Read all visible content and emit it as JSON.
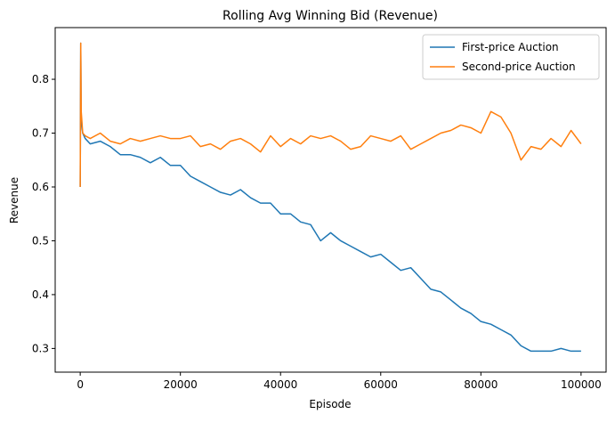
{
  "chart_data": {
    "type": "line",
    "title": "Rolling Avg Winning Bid (Revenue)",
    "x_label": "Episode",
    "y_label": "Revenue",
    "x": [
      0,
      100,
      200,
      500,
      1000,
      2000,
      4000,
      6000,
      8000,
      10000,
      12000,
      14000,
      16000,
      18000,
      20000,
      22000,
      24000,
      26000,
      28000,
      30000,
      32000,
      34000,
      36000,
      38000,
      40000,
      42000,
      44000,
      46000,
      48000,
      50000,
      52000,
      54000,
      56000,
      58000,
      60000,
      62000,
      64000,
      66000,
      68000,
      70000,
      72000,
      74000,
      76000,
      78000,
      80000,
      82000,
      84000,
      86000,
      88000,
      90000,
      92000,
      94000,
      96000,
      98000,
      100000
    ],
    "series": [
      {
        "name": "First-price Auction",
        "color": "#1f77b4",
        "values": [
          0.6,
          0.867,
          0.72,
          0.7,
          0.69,
          0.68,
          0.685,
          0.675,
          0.66,
          0.66,
          0.655,
          0.645,
          0.655,
          0.64,
          0.64,
          0.62,
          0.61,
          0.6,
          0.59,
          0.585,
          0.595,
          0.58,
          0.57,
          0.57,
          0.55,
          0.55,
          0.535,
          0.53,
          0.5,
          0.515,
          0.5,
          0.49,
          0.48,
          0.47,
          0.475,
          0.46,
          0.445,
          0.45,
          0.43,
          0.41,
          0.405,
          0.39,
          0.375,
          0.365,
          0.35,
          0.345,
          0.335,
          0.325,
          0.305,
          0.295,
          0.295,
          0.295,
          0.3,
          0.295,
          0.295
        ]
      },
      {
        "name": "Second-price Auction",
        "color": "#ff7f0e",
        "values": [
          0.6,
          0.867,
          0.74,
          0.7,
          0.695,
          0.69,
          0.7,
          0.685,
          0.68,
          0.69,
          0.685,
          0.69,
          0.695,
          0.69,
          0.69,
          0.695,
          0.675,
          0.68,
          0.67,
          0.685,
          0.69,
          0.68,
          0.665,
          0.695,
          0.675,
          0.69,
          0.68,
          0.695,
          0.69,
          0.695,
          0.685,
          0.67,
          0.675,
          0.695,
          0.69,
          0.685,
          0.695,
          0.67,
          0.68,
          0.69,
          0.7,
          0.705,
          0.715,
          0.71,
          0.7,
          0.74,
          0.73,
          0.7,
          0.65,
          0.675,
          0.67,
          0.69,
          0.675,
          0.705,
          0.68
        ]
      }
    ],
    "xlim": [
      -5000,
      105000
    ],
    "ylim": [
      0.256,
      0.896
    ],
    "xticks": [
      0,
      20000,
      40000,
      60000,
      80000,
      100000
    ],
    "yticks": [
      0.3,
      0.4,
      0.5,
      0.6,
      0.7,
      0.8
    ],
    "grid": false,
    "legend": "upper right"
  }
}
